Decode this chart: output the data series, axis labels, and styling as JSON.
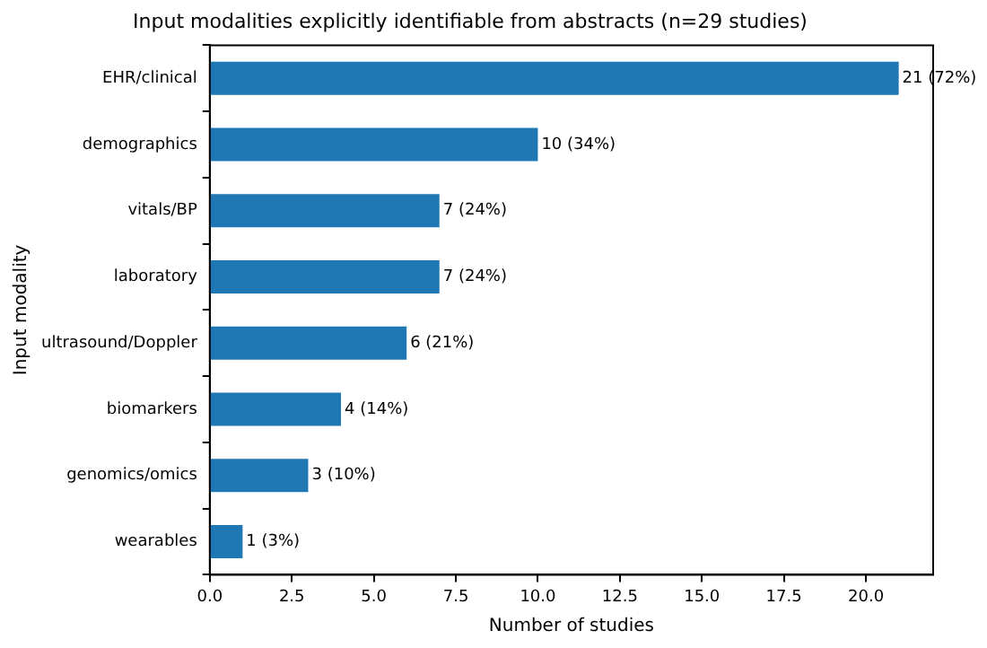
{
  "chart_data": {
    "type": "bar",
    "orientation": "horizontal",
    "title": "Input modalities explicitly identifiable from abstracts (n=29 studies)",
    "xlabel": "Number of studies",
    "ylabel": "Input modality",
    "categories": [
      "EHR/clinical",
      "demographics",
      "vitals/BP",
      "laboratory",
      "ultrasound/Doppler",
      "biomarkers",
      "genomics/omics",
      "wearables"
    ],
    "values": [
      21,
      10,
      7,
      7,
      6,
      4,
      3,
      1
    ],
    "value_labels": [
      "21 (72%)",
      "10 (34%)",
      "7 (24%)",
      "7 (24%)",
      "6 (21%)",
      "4 (14%)",
      "3 (10%)",
      "1 (3%)"
    ],
    "color": "#1f77b4",
    "xlim": [
      0,
      22.05
    ],
    "xticks": [
      {
        "value": 0,
        "label": "0.0"
      },
      {
        "value": 2.5,
        "label": "2.5"
      },
      {
        "value": 5,
        "label": "5.0"
      },
      {
        "value": 7.5,
        "label": "7.5"
      },
      {
        "value": 10,
        "label": "10.0"
      },
      {
        "value": 12.5,
        "label": "12.5"
      },
      {
        "value": 15,
        "label": "15.0"
      },
      {
        "value": 17.5,
        "label": "17.5"
      },
      {
        "value": 20,
        "label": "20.0"
      }
    ]
  }
}
